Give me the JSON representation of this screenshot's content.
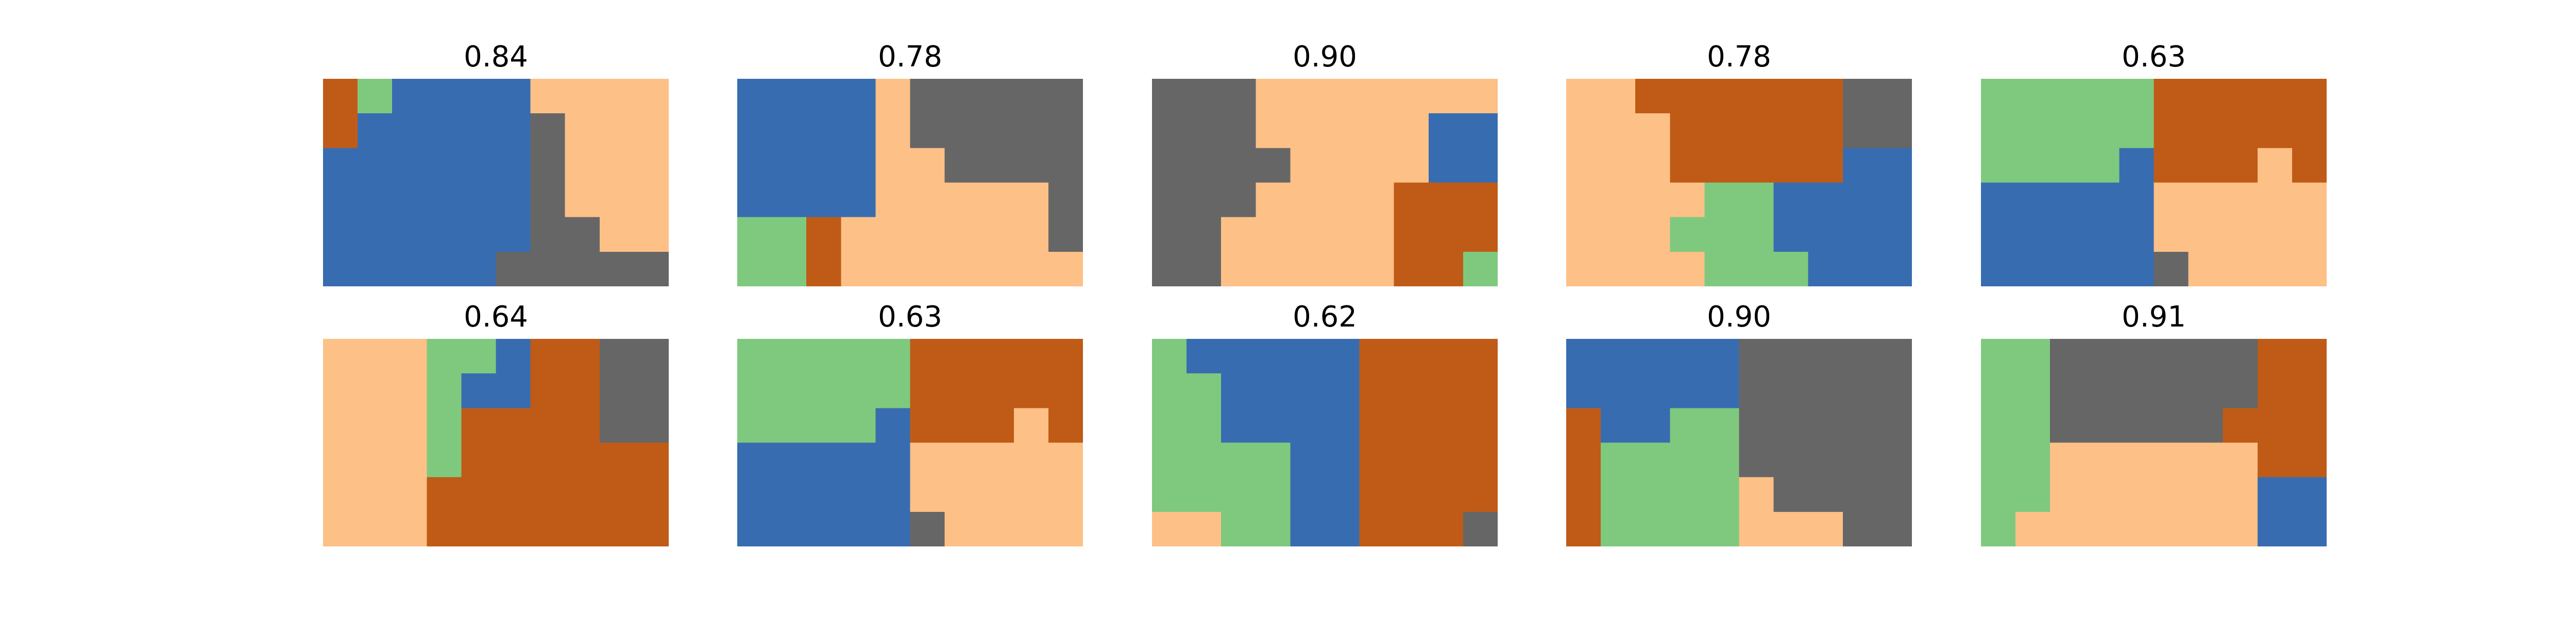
{
  "chart_data": {
    "type": "heatmap",
    "grid": [
      10,
      6
    ],
    "legend": "none",
    "colors": {
      "O": "#BF5B17",
      "G": "#7FC97F",
      "B": "#386CB0",
      "P": "#FDC086",
      "D": "#666666"
    },
    "panels": [
      {
        "title": "0.84",
        "cells": [
          "OGBBBBPPPP",
          "OBBBBBDPPP",
          "BBBBBBDPPP",
          "BBBBBBDPPP",
          "BBBBBBDDPP",
          "BBBBBDDDDD"
        ]
      },
      {
        "title": "0.78",
        "cells": [
          "BBBBPDDDDD",
          "BBBBPDDDDD",
          "BBBBPPDDDD",
          "BBBBPPPPPD",
          "GGOPPPPPPD",
          "GGOPPPPPPP"
        ]
      },
      {
        "title": "0.90",
        "cells": [
          "DDDPPPPPPP",
          "DDDPPPPPBB",
          "DDDDPPPPBB",
          "DDDPPPPOOO",
          "DDPPPPPOOO",
          "DDPPPPPOOG"
        ]
      },
      {
        "title": "0.78",
        "cells": [
          "PPOOOOOODD",
          "PPPOOOOODD",
          "PPPOOOOOBB",
          "PPPPGGBBBB",
          "PPPGGGBBBB",
          "PPPPGGGBBB"
        ]
      },
      {
        "title": "0.63",
        "cells": [
          "GGGGGOOOOO",
          "GGGGGOOOOO",
          "GGGGBOOOPO",
          "BBBBBPPPPP",
          "BBBBBPPPPP",
          "BBBBBDPPPP"
        ]
      },
      {
        "title": "0.64",
        "cells": [
          "PPPGGBOODD",
          "PPPGBBOODD",
          "PPPGOOOODD",
          "PPPGOOOOOO",
          "PPPOOOOOOO",
          "PPPOOOOOOO"
        ]
      },
      {
        "title": "0.63",
        "cells": [
          "GGGGGOOOOO",
          "GGGGGOOOOO",
          "GGGGBOOOPO",
          "BBBBBPPPPP",
          "BBBBBPPPPP",
          "BBBBBDPPPP"
        ]
      },
      {
        "title": "0.62",
        "cells": [
          "GBBBBBOOOO",
          "GGBBBBOOOO",
          "GGBBBBOOOO",
          "GGGGBBOOOO",
          "GGGGBBOOOO",
          "PPGGBBOOOD"
        ]
      },
      {
        "title": "0.90",
        "cells": [
          "BBBBBDDDDD",
          "BBBBBDDDDD",
          "OBBGGDDDDD",
          "OGGGGDDDDD",
          "OGGGGPDDDD",
          "OGGGGPPPDD"
        ]
      },
      {
        "title": "0.91",
        "cells": [
          "GGDDDDDDOO",
          "GGDDDDDDOO",
          "GGDDDDDOOO",
          "GGPPPPPPOO",
          "GGPPPPPPBB",
          "GPPPPPPPBB"
        ]
      }
    ]
  }
}
